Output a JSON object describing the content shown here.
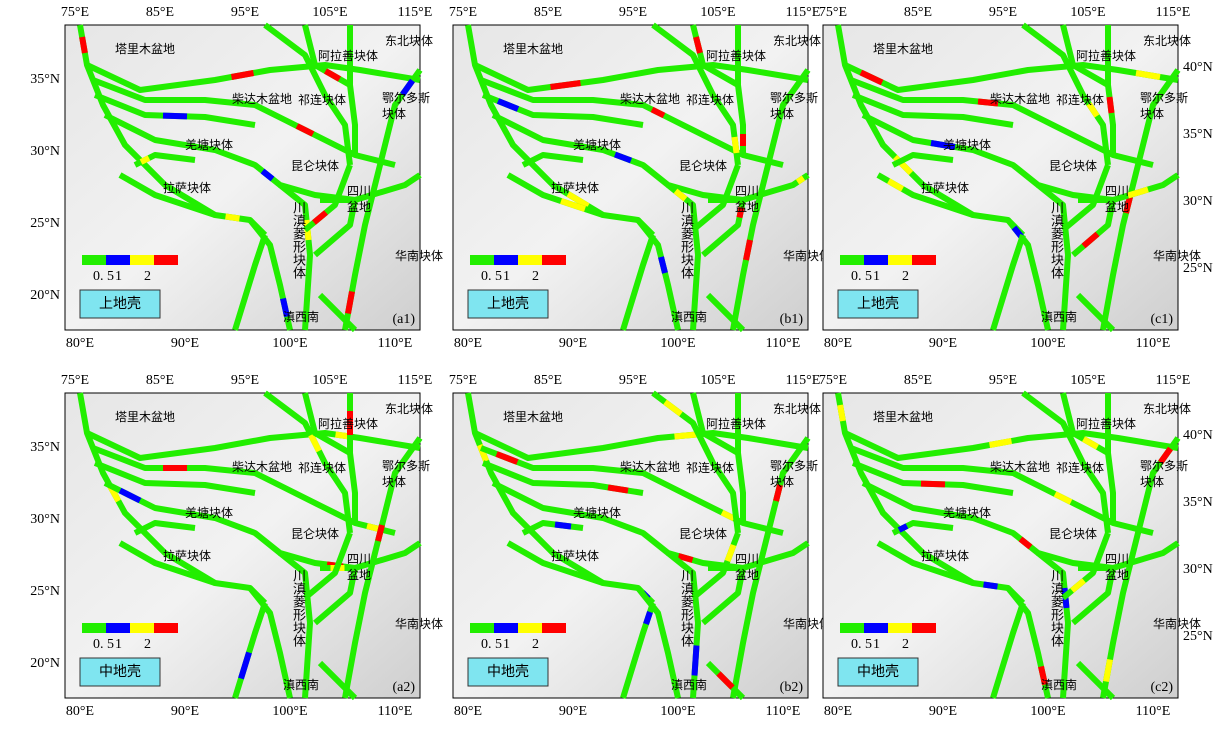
{
  "panels": [
    {
      "label": "(a1)",
      "layer": "上地壳",
      "top_lon": [
        "75°E",
        "85°E",
        "95°E",
        "105°E",
        "115°E"
      ],
      "bottom_lon": [
        "80°E",
        "90°E",
        "100°E",
        "110°E"
      ],
      "left_lat": [
        "35°N",
        "30°N",
        "25°N",
        "20°N"
      ]
    },
    {
      "label": "(b1)",
      "layer": "上地壳",
      "top_lon": [
        "75°E",
        "85°E",
        "95°E",
        "105°E",
        "115°E"
      ],
      "bottom_lon": [
        "80°E",
        "90°E",
        "100°E",
        "110°E"
      ]
    },
    {
      "label": "(c1)",
      "layer": "上地壳",
      "top_lon": [
        "75°E",
        "85°E",
        "95°E",
        "105°E",
        "115°E"
      ],
      "bottom_lon": [
        "80°E",
        "90°E",
        "100°E",
        "110°E"
      ],
      "right_lat": [
        "40°N",
        "35°N",
        "30°N",
        "25°N"
      ]
    },
    {
      "label": "(a2)",
      "layer": "中地壳",
      "top_lon": [
        "75°E",
        "85°E",
        "95°E",
        "105°E",
        "115°E"
      ],
      "bottom_lon": [
        "80°E",
        "90°E",
        "100°E",
        "110°E"
      ],
      "left_lat": [
        "35°N",
        "30°N",
        "25°N",
        "20°N"
      ]
    },
    {
      "label": "(b2)",
      "layer": "中地壳",
      "top_lon": [
        "75°E",
        "85°E",
        "95°E",
        "105°E",
        "115°E"
      ],
      "bottom_lon": [
        "80°E",
        "90°E",
        "100°E",
        "110°E"
      ]
    },
    {
      "label": "(c2)",
      "layer": "中地壳",
      "top_lon": [
        "75°E",
        "85°E",
        "95°E",
        "105°E",
        "115°E"
      ],
      "bottom_lon": [
        "80°E",
        "90°E",
        "100°E",
        "110°E"
      ],
      "right_lat": [
        "40°N",
        "35°N",
        "30°N",
        "25°N"
      ]
    }
  ],
  "blocks": [
    "塔里木盆地",
    "阿拉善块体",
    "东北块体",
    "柴达木盆地",
    "祁连块体",
    "鄂尔多斯",
    "块体",
    "羌塘块体",
    "昆仑块体",
    "四川",
    "盆地",
    "拉萨块体",
    "川滇菱形块体",
    "华南块体",
    "滇西南"
  ],
  "legend_ticks": [
    "0. 5",
    "1",
    "2"
  ]
}
